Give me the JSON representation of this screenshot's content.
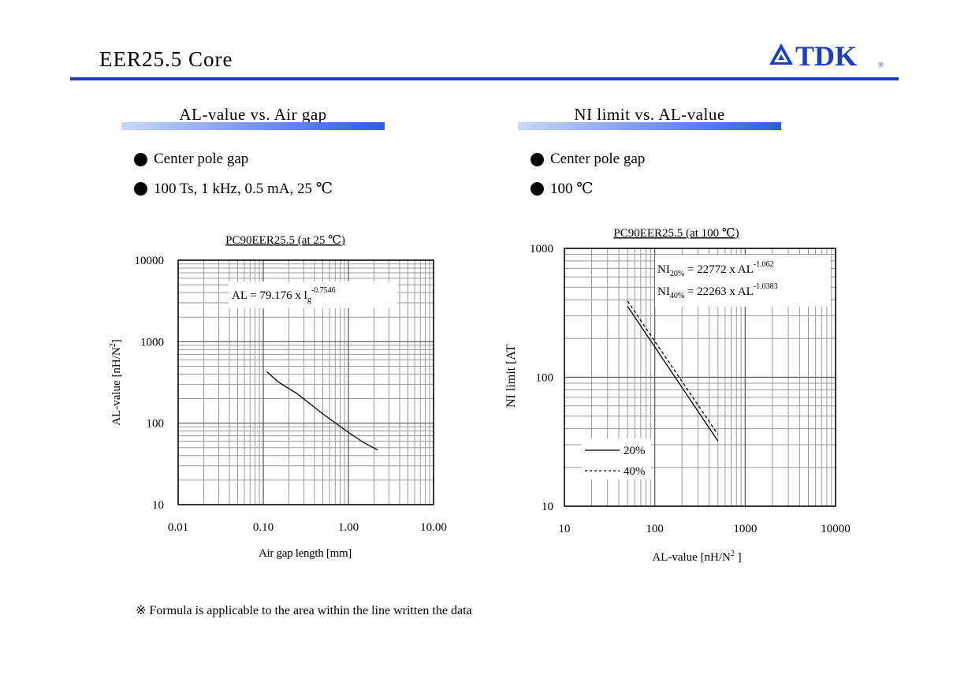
{
  "header": {
    "title": "EER25.5  Core",
    "brand": "TDK",
    "brand_mark": "®"
  },
  "left": {
    "section_title": "AL-value vs. Air gap",
    "bullets": [
      "Center pole gap",
      "100 Ts,  1 kHz,  0.5 mA,  25 ℃"
    ]
  },
  "right": {
    "section_title": "NI limit vs. AL-value",
    "bullets": [
      "Center pole gap",
      "100 ℃"
    ]
  },
  "footnote": "※ Formula is applicable to the area within the line written the data",
  "chart_data": [
    {
      "type": "line",
      "title": "PC90EER25.5 (at 25 ℃)",
      "xlabel": "Air gap length [mm]",
      "ylabel": "AL-value [nH/N",
      "ylabel_sup": "2",
      "ylabel_end": "]",
      "xscale": "log",
      "yscale": "log",
      "xlim": [
        0.01,
        10
      ],
      "ylim": [
        10,
        10000
      ],
      "xticks": [
        0.01,
        0.1,
        1,
        10
      ],
      "xtick_labels": [
        "0.01",
        "0.10",
        "1.00",
        "10.00"
      ],
      "yticks": [
        10,
        100,
        1000,
        10000
      ],
      "ytick_labels": [
        "10",
        "100",
        "1000",
        "10000"
      ],
      "grid": true,
      "annotation": {
        "text": "AL = 79.176 x  l",
        "sub": "g",
        "sup": "-0.7546"
      },
      "series": [
        {
          "x": [
            0.11,
            0.15,
            0.25,
            0.5,
            1.0,
            1.5,
            2.2
          ],
          "y": [
            430,
            320,
            230,
            130,
            77,
            58,
            47
          ]
        }
      ]
    },
    {
      "type": "line",
      "title": "PC90EER25.5 (at 100 ℃)",
      "xlabel": "AL-value [nH/N",
      "xlabel_sup": "2",
      "xlabel_end": " ]",
      "ylabel": "NI limit [AT",
      "xscale": "log",
      "yscale": "log",
      "xlim": [
        10,
        10000
      ],
      "ylim": [
        10,
        1000
      ],
      "xticks": [
        10,
        100,
        1000,
        10000
      ],
      "xtick_labels": [
        "10",
        "100",
        "1000",
        "10000"
      ],
      "yticks": [
        10,
        100,
        1000
      ],
      "ytick_labels": [
        "10",
        "100",
        "1000"
      ],
      "grid": true,
      "annotations": [
        {
          "text": "NI",
          "sub": "20%",
          "rest": " = 22772 x AL",
          "sup": "-1.062"
        },
        {
          "text": "NI",
          "sub": "40%",
          "rest": " = 22263 x AL",
          "sup": "-1.0383"
        }
      ],
      "legend": {
        "placement": "bottom-left"
      },
      "series": [
        {
          "name": "20%",
          "style": "solid",
          "x": [
            50,
            500
          ],
          "y": [
            355,
            32
          ]
        },
        {
          "name": "40%",
          "style": "dashed",
          "x": [
            50,
            500
          ],
          "y": [
            390,
            36
          ]
        }
      ]
    }
  ]
}
